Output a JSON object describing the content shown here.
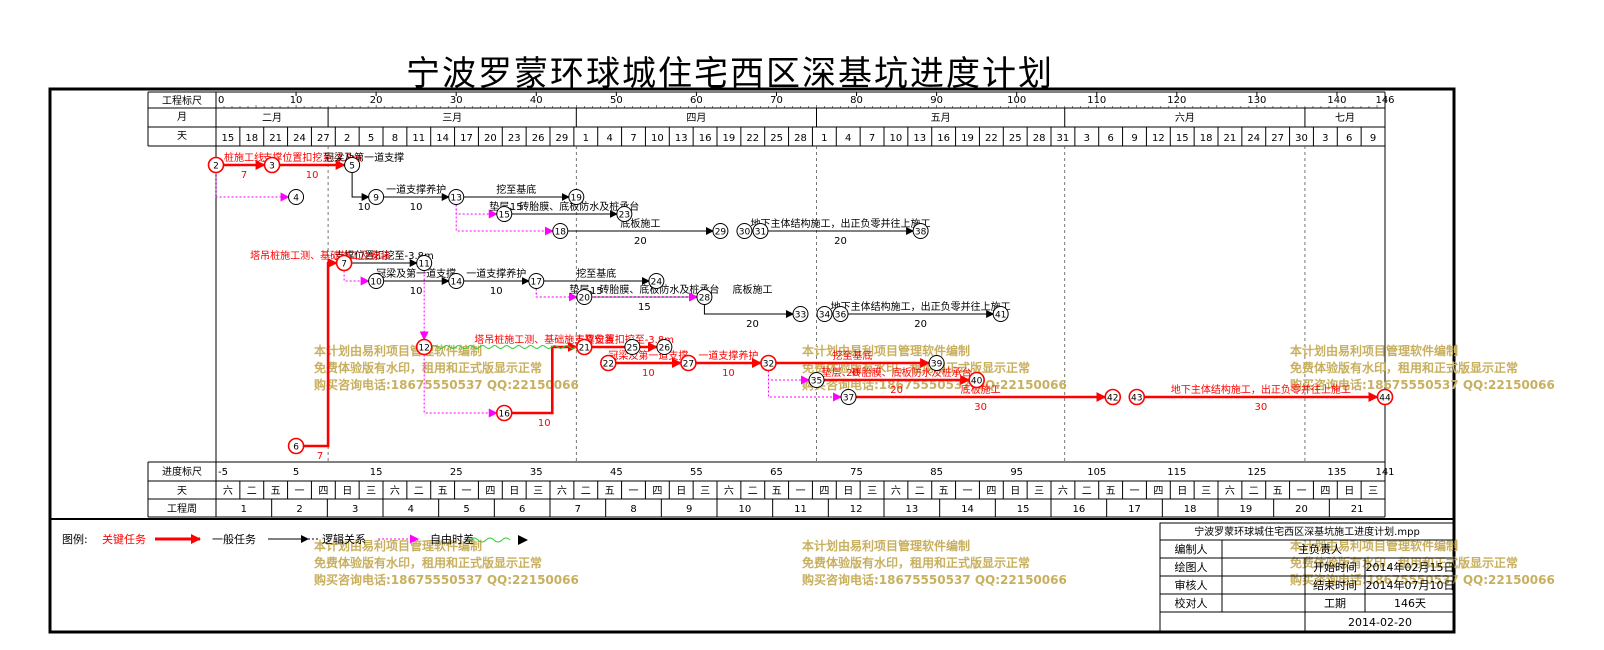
{
  "title": "宁波罗蒙环球城住宅西区深基坑进度计划",
  "scale_labels": {
    "top": "工程标尺",
    "month": "月",
    "day": "天",
    "bottom": "进度标尺",
    "bottom_day": "天",
    "week": "工程周"
  },
  "top_scale_ticks": [
    0,
    10,
    20,
    30,
    40,
    50,
    60,
    70,
    80,
    90,
    100,
    110,
    120,
    130,
    140,
    146
  ],
  "months": [
    {
      "label": "二月",
      "start": 0,
      "end": 14
    },
    {
      "label": "三月",
      "start": 14,
      "end": 45
    },
    {
      "label": "四月",
      "start": 45,
      "end": 75
    },
    {
      "label": "五月",
      "start": 75,
      "end": 106
    },
    {
      "label": "六月",
      "start": 106,
      "end": 136
    },
    {
      "label": "七月",
      "start": 136,
      "end": 146
    }
  ],
  "day_labels": [
    "15",
    "18",
    "21",
    "24",
    "27",
    "2",
    "5",
    "8",
    "11",
    "14",
    "17",
    "20",
    "23",
    "26",
    "29",
    "1",
    "4",
    "7",
    "10",
    "13",
    "16",
    "19",
    "22",
    "25",
    "28",
    "1",
    "4",
    "7",
    "10",
    "13",
    "16",
    "19",
    "22",
    "25",
    "28",
    "31",
    "3",
    "6",
    "9",
    "12",
    "15",
    "18",
    "21",
    "24",
    "27",
    "30",
    "3",
    "6",
    "9"
  ],
  "bottom_scale_ticks": [
    -5,
    5,
    15,
    25,
    35,
    45,
    55,
    65,
    75,
    85,
    95,
    105,
    115,
    125,
    135,
    141
  ],
  "weekday_labels": [
    "六",
    "二",
    "五",
    "一",
    "四",
    "日",
    "三",
    "六",
    "二",
    "五",
    "一",
    "四",
    "日",
    "三",
    "六",
    "二",
    "五",
    "一",
    "四",
    "日",
    "三",
    "六",
    "二",
    "五",
    "一",
    "四",
    "日",
    "三",
    "六",
    "二",
    "五",
    "一",
    "四",
    "日",
    "三",
    "六",
    "二",
    "五",
    "一",
    "四",
    "日",
    "三",
    "六",
    "二",
    "五",
    "一",
    "四",
    "日",
    "三"
  ],
  "weeks": [
    "1",
    "2",
    "3",
    "4",
    "5",
    "6",
    "7",
    "8",
    "9",
    "10",
    "11",
    "12",
    "13",
    "14",
    "15",
    "16",
    "17",
    "18",
    "19",
    "20",
    "21"
  ],
  "legend": {
    "label": "图例:",
    "critical": "关键任务",
    "normal": "一般任务",
    "logic": "逻辑关系",
    "free_float": "自由时差"
  },
  "info_table": {
    "filename": "宁波罗蒙环球城住宅西区深基坑施工进度计划.mpp",
    "rows": [
      {
        "label": "编制人",
        "key": "",
        "value": ""
      },
      {
        "label": "绘图人",
        "key": "开始时间",
        "value": "2014年02月15日"
      },
      {
        "label": "审核人",
        "key": "结束时间",
        "value": "2014年07月10日"
      },
      {
        "label": "校对人",
        "key": "工期",
        "value": "146天"
      }
    ],
    "responsible_label": "主负责人",
    "date": "2014-02-20"
  },
  "watermark": {
    "line1": "本计划由易利项目管理软件编制",
    "line2": "免费体验版有水印，租用和正式版显示正常",
    "line3": "购买咨询电话:18675550537 QQ:22150066"
  },
  "colors": {
    "critical": "#ff0000",
    "normal": "#000000",
    "float": "#ff00ff",
    "watermark": "#c8b060",
    "free_float_line": "#33cc33"
  },
  "chart_data": {
    "type": "network_diagram",
    "total_duration_days": 146,
    "nodes": [
      {
        "id": "2",
        "day": 0,
        "row": 0,
        "critical": true
      },
      {
        "id": "3",
        "day": 7,
        "row": 0,
        "critical": true
      },
      {
        "id": "4",
        "day": 10,
        "row": 1
      },
      {
        "id": "5",
        "day": 17,
        "row": 0
      },
      {
        "id": "9",
        "day": 20,
        "row": 1
      },
      {
        "id": "13",
        "day": 30,
        "row": 1
      },
      {
        "id": "15",
        "day": 36,
        "row": 2
      },
      {
        "id": "19",
        "day": 45,
        "row": 1
      },
      {
        "id": "23",
        "day": 51,
        "row": 2
      },
      {
        "id": "18",
        "day": 43,
        "row": 3
      },
      {
        "id": "29",
        "day": 63,
        "row": 3
      },
      {
        "id": "30",
        "day": 66,
        "row": 3
      },
      {
        "id": "31",
        "day": 68,
        "row": 3
      },
      {
        "id": "38",
        "day": 88,
        "row": 3
      },
      {
        "id": "7",
        "day": 16,
        "row": 4,
        "critical": true
      },
      {
        "id": "11",
        "day": 26,
        "row": 4
      },
      {
        "id": "10",
        "day": 20,
        "row": 5
      },
      {
        "id": "14",
        "day": 30,
        "row": 5
      },
      {
        "id": "17",
        "day": 40,
        "row": 5
      },
      {
        "id": "20",
        "day": 46,
        "row": 6
      },
      {
        "id": "24",
        "day": 55,
        "row": 5
      },
      {
        "id": "28",
        "day": 61,
        "row": 6
      },
      {
        "id": "33",
        "day": 73,
        "row": 7
      },
      {
        "id": "34",
        "day": 76,
        "row": 7
      },
      {
        "id": "36",
        "day": 78,
        "row": 7
      },
      {
        "id": "41",
        "day": 98,
        "row": 7
      },
      {
        "id": "12",
        "day": 26,
        "row": 8,
        "critical": true
      },
      {
        "id": "21",
        "day": 46,
        "row": 8,
        "critical": true
      },
      {
        "id": "25",
        "day": 52,
        "row": 8
      },
      {
        "id": "26",
        "day": 56,
        "row": 8
      },
      {
        "id": "22",
        "day": 49,
        "row": 9,
        "critical": true
      },
      {
        "id": "27",
        "day": 59,
        "row": 9,
        "critical": true
      },
      {
        "id": "32",
        "day": 69,
        "row": 9,
        "critical": true
      },
      {
        "id": "39",
        "day": 90,
        "row": 9
      },
      {
        "id": "35",
        "day": 75,
        "row": 10
      },
      {
        "id": "40",
        "day": 95,
        "row": 10,
        "critical": true
      },
      {
        "id": "37",
        "day": 79,
        "row": 11
      },
      {
        "id": "42",
        "day": 112,
        "row": 11,
        "critical": true
      },
      {
        "id": "43",
        "day": 115,
        "row": 11,
        "critical": true
      },
      {
        "id": "44",
        "day": 146,
        "row": 11,
        "critical": true
      },
      {
        "id": "16",
        "day": 36,
        "row": 12,
        "critical": true
      },
      {
        "id": "6",
        "day": 10,
        "row": 13,
        "critical": true
      }
    ],
    "tasks": [
      {
        "from": "2",
        "to": "3",
        "label": "桩施工线",
        "duration": "7",
        "critical": true
      },
      {
        "from": "3",
        "to": "5",
        "label": "支撑位置扣挖至-3.8m",
        "duration": "10",
        "critical": true
      },
      {
        "from": "5",
        "to": "9",
        "label": "冠梁及第一道支撑",
        "duration": "10"
      },
      {
        "from": "9",
        "to": "13",
        "label": "一道支撑养护",
        "duration": "10"
      },
      {
        "from": "13",
        "to": "19",
        "label": "挖至基底",
        "duration": "15"
      },
      {
        "from": "15",
        "to": "23",
        "label": "垫层、砖胎膜、底板防水及桩承台",
        "duration": ""
      },
      {
        "from": "18",
        "to": "29",
        "label": "底板施工",
        "duration": "20"
      },
      {
        "from": "31",
        "to": "38",
        "label": "地下主体结构施工，出正负零并往上施工",
        "duration": "20"
      },
      {
        "from": "7",
        "to": "11",
        "label": "支撑位置扣挖至-3.8m",
        "duration": ""
      },
      {
        "from": "10",
        "to": "14",
        "label": "冠梁及第一道支撑",
        "duration": "10"
      },
      {
        "from": "14",
        "to": "17",
        "label": "一道支撑养护",
        "duration": "10"
      },
      {
        "from": "17",
        "to": "24",
        "label": "挖至基底",
        "duration": "15"
      },
      {
        "from": "20",
        "to": "28",
        "label": "垫层、砖胎膜、底板防水及桩承台",
        "duration": "15"
      },
      {
        "from": "28",
        "to": "33",
        "label": "底板施工",
        "duration": "20"
      },
      {
        "from": "36",
        "to": "41",
        "label": "地下主体结构施工，出正负零并往上施工",
        "duration": "20"
      },
      {
        "from": "21",
        "to": "26",
        "label": "支撑位置扣挖至-3.8m",
        "duration": "",
        "critical": true
      },
      {
        "from": "22",
        "to": "27",
        "label": "冠梁及第一道支撑",
        "duration": "10",
        "critical": true
      },
      {
        "from": "27",
        "to": "32",
        "label": "一道支撑养护",
        "duration": "10",
        "critical": true
      },
      {
        "from": "32",
        "to": "39",
        "label": "挖至基底",
        "duration": "20",
        "critical": true
      },
      {
        "from": "35",
        "to": "40",
        "label": "垫层、砖胎膜、底板防水及桩承台",
        "duration": "20",
        "critical": true
      },
      {
        "from": "37",
        "to": "42",
        "label": "底板施工",
        "duration": "30",
        "critical": true
      },
      {
        "from": "43",
        "to": "44",
        "label": "地下主体结构施工，出正负零并往上施工",
        "duration": "30",
        "critical": true
      },
      {
        "from": "16",
        "to": "21",
        "label": "塔吊桩施工测、基础施工及安装",
        "duration": "10",
        "critical": true
      },
      {
        "from": "6",
        "to": "7",
        "label": "塔吊桩施工测、基础施工及安装",
        "duration": "7",
        "critical": true
      }
    ]
  }
}
